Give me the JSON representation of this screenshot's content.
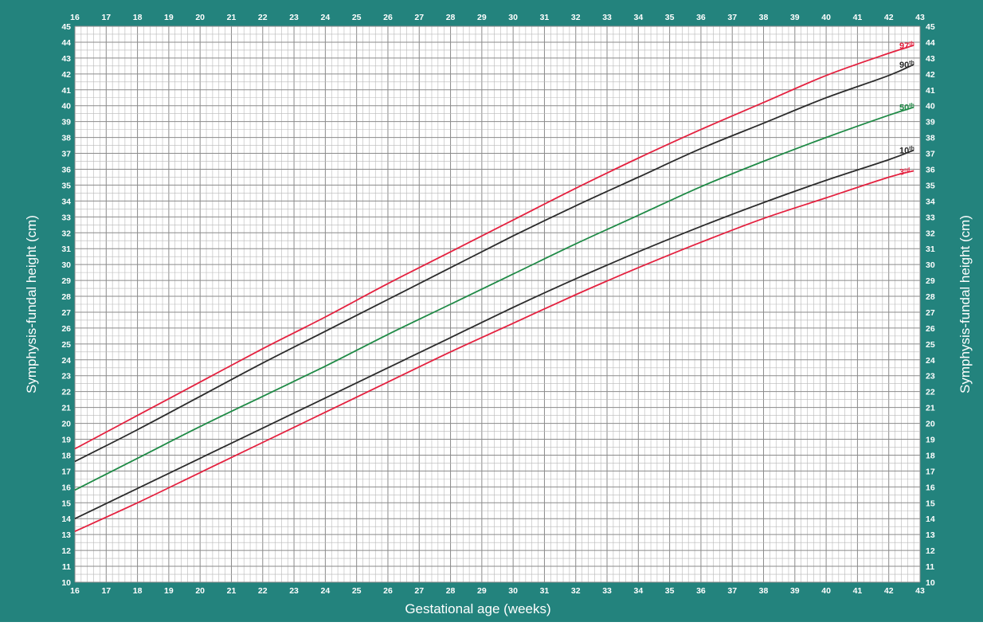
{
  "colors": {
    "frame": "#23837d",
    "grid_minor": "#b8b8b8",
    "grid_major": "#8a8a8a",
    "red": "#e4213f",
    "black": "#2b2b2b",
    "green": "#1f8a46"
  },
  "chart_data": {
    "type": "line",
    "title": "",
    "xlabel": "Gestational age (weeks)",
    "ylabel": "Symphysis-fundal height (cm)",
    "ylabel_right": "Symphysis-fundal height (cm)",
    "xlim": [
      16,
      43
    ],
    "ylim": [
      10,
      45
    ],
    "x_ticks": [
      "16",
      "17",
      "18",
      "19",
      "20",
      "21",
      "22",
      "23",
      "24",
      "25",
      "26",
      "27",
      "28",
      "29",
      "30",
      "31",
      "32",
      "33",
      "34",
      "35",
      "36",
      "37",
      "38",
      "39",
      "40",
      "41",
      "42",
      "43"
    ],
    "y_ticks": [
      "10",
      "11",
      "12",
      "13",
      "14",
      "15",
      "16",
      "17",
      "18",
      "19",
      "20",
      "21",
      "22",
      "23",
      "24",
      "25",
      "26",
      "27",
      "28",
      "29",
      "30",
      "31",
      "32",
      "33",
      "34",
      "35",
      "36",
      "37",
      "38",
      "39",
      "40",
      "41",
      "42",
      "43",
      "44",
      "45"
    ],
    "grid": true,
    "x": [
      16,
      18,
      20,
      22,
      24,
      26,
      28,
      30,
      32,
      34,
      36,
      38,
      40,
      42,
      42.8
    ],
    "series": [
      {
        "name": "97",
        "suffix": "th",
        "color": "red",
        "values": [
          18.4,
          20.5,
          22.6,
          24.7,
          26.7,
          28.8,
          30.8,
          32.8,
          34.8,
          36.7,
          38.5,
          40.2,
          41.9,
          43.3,
          43.8
        ]
      },
      {
        "name": "90",
        "suffix": "th",
        "color": "black",
        "values": [
          17.6,
          19.6,
          21.7,
          23.8,
          25.8,
          27.8,
          29.8,
          31.8,
          33.7,
          35.5,
          37.3,
          38.9,
          40.5,
          41.9,
          42.6
        ]
      },
      {
        "name": "50",
        "suffix": "th",
        "color": "green",
        "values": [
          15.8,
          17.8,
          19.8,
          21.7,
          23.6,
          25.6,
          27.5,
          29.4,
          31.3,
          33.1,
          34.9,
          36.5,
          38.0,
          39.4,
          39.9
        ]
      },
      {
        "name": "10",
        "suffix": "th",
        "color": "black",
        "values": [
          14.0,
          15.9,
          17.8,
          19.7,
          21.6,
          23.5,
          25.4,
          27.3,
          29.1,
          30.8,
          32.4,
          33.9,
          35.3,
          36.6,
          37.2
        ]
      },
      {
        "name": "3",
        "suffix": "rd",
        "color": "red",
        "values": [
          13.2,
          15.0,
          16.9,
          18.8,
          20.7,
          22.6,
          24.5,
          26.3,
          28.1,
          29.8,
          31.4,
          32.9,
          34.2,
          35.5,
          35.9
        ]
      }
    ]
  }
}
